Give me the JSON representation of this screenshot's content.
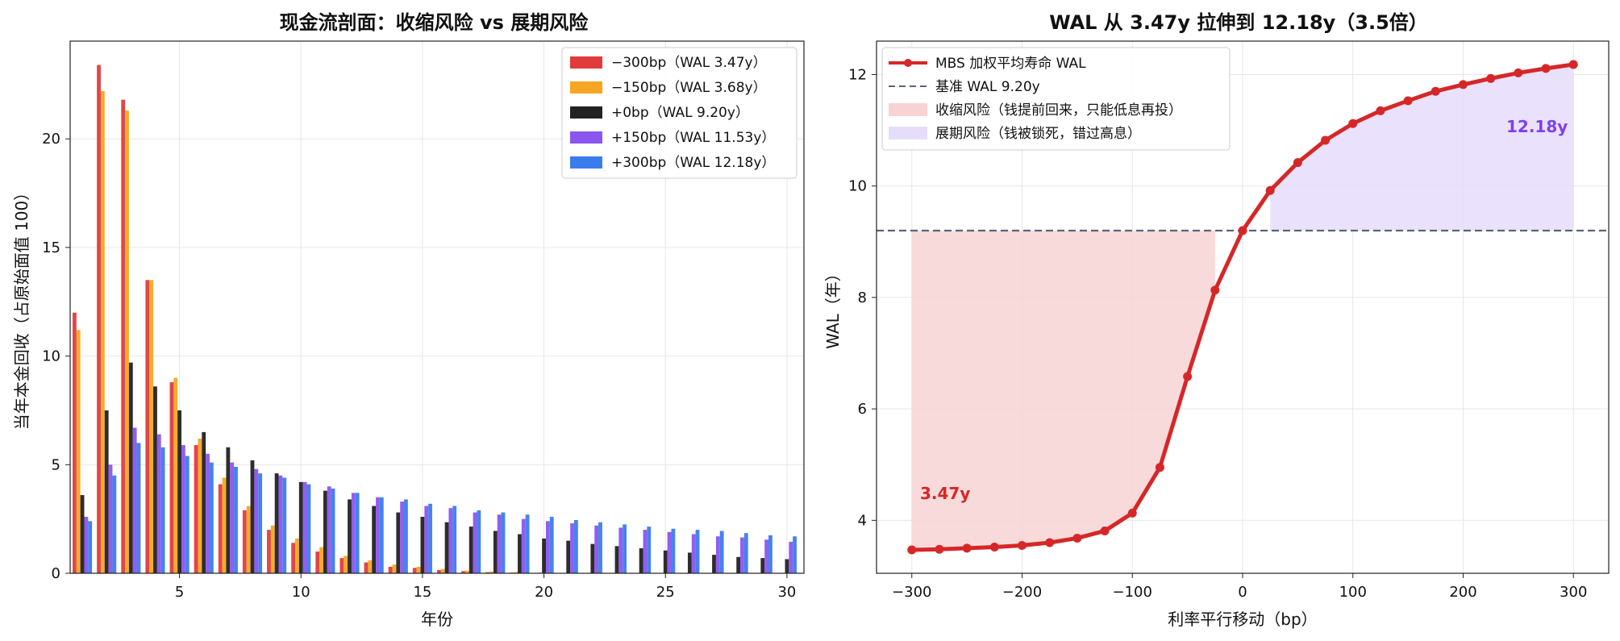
{
  "colors": {
    "m300": "#e03c3c",
    "m150": "#f5a623",
    "zero": "#222222",
    "p150": "#8b55f0",
    "p300": "#3b7ced",
    "wal_line": "#d62728",
    "baseline": "#5a6478",
    "contraction_fill": "#f8d3d4",
    "extension_fill": "#e6ddfb",
    "contraction_text": "#d62728",
    "extension_text": "#7e3ff2"
  },
  "chart_data": [
    {
      "type": "bar",
      "title": "现金流剖面：收缩风险 vs 展期风险",
      "xlabel": "年份",
      "ylabel": "当年本金回收（占原始面值 100）",
      "xlim": [
        0.5,
        30.7
      ],
      "ylim": [
        0,
        24.5
      ],
      "xticks": [
        5,
        10,
        15,
        20,
        25,
        30
      ],
      "yticks": [
        0,
        5,
        10,
        15,
        20
      ],
      "grid": true,
      "legend_position": "top-right",
      "categories": [
        1,
        2,
        3,
        4,
        5,
        6,
        7,
        8,
        9,
        10,
        11,
        12,
        13,
        14,
        15,
        16,
        17,
        18,
        19,
        20,
        21,
        22,
        23,
        24,
        25,
        26,
        27,
        28,
        29,
        30
      ],
      "series": [
        {
          "name": "−300bp（WAL 3.47y）",
          "color_key": "m300",
          "values": [
            12.0,
            23.4,
            21.8,
            13.5,
            8.8,
            5.9,
            4.1,
            2.9,
            2.0,
            1.4,
            1.0,
            0.7,
            0.5,
            0.3,
            0.25,
            0.15,
            0.1,
            0.05,
            0.03,
            0.02,
            0,
            0,
            0,
            0,
            0,
            0,
            0,
            0,
            0,
            0
          ]
        },
        {
          "name": "−150bp（WAL 3.68y）",
          "color_key": "m150",
          "values": [
            11.2,
            22.2,
            21.3,
            13.5,
            9.0,
            6.2,
            4.4,
            3.1,
            2.2,
            1.6,
            1.2,
            0.8,
            0.6,
            0.4,
            0.3,
            0.2,
            0.12,
            0.08,
            0.05,
            0.03,
            0.02,
            0,
            0,
            0,
            0,
            0,
            0,
            0,
            0,
            0
          ]
        },
        {
          "name": "+0bp（WAL 9.20y）",
          "color_key": "zero",
          "values": [
            3.6,
            7.5,
            9.7,
            8.6,
            7.5,
            6.5,
            5.8,
            5.2,
            4.6,
            4.2,
            3.8,
            3.4,
            3.1,
            2.8,
            2.6,
            2.35,
            2.15,
            1.95,
            1.8,
            1.6,
            1.5,
            1.35,
            1.25,
            1.15,
            1.05,
            0.95,
            0.85,
            0.75,
            0.7,
            0.65
          ]
        },
        {
          "name": "+150bp（WAL 11.53y）",
          "color_key": "p150",
          "values": [
            2.6,
            5.0,
            6.7,
            6.4,
            5.9,
            5.5,
            5.1,
            4.8,
            4.5,
            4.2,
            4.0,
            3.7,
            3.5,
            3.3,
            3.1,
            3.0,
            2.8,
            2.7,
            2.5,
            2.4,
            2.3,
            2.2,
            2.1,
            2.0,
            1.9,
            1.8,
            1.7,
            1.65,
            1.55,
            1.45
          ]
        },
        {
          "name": "+300bp（WAL 12.18y）",
          "color_key": "p300",
          "values": [
            2.4,
            4.5,
            6.0,
            5.8,
            5.4,
            5.1,
            4.9,
            4.6,
            4.4,
            4.1,
            3.9,
            3.7,
            3.5,
            3.4,
            3.2,
            3.1,
            2.9,
            2.8,
            2.7,
            2.6,
            2.45,
            2.35,
            2.25,
            2.15,
            2.05,
            2.0,
            1.95,
            1.85,
            1.75,
            1.7
          ]
        }
      ]
    },
    {
      "type": "line",
      "title": "WAL 从 3.47y 拉伸到 12.18y（3.5倍）",
      "xlabel": "利率平行移动（bp）",
      "ylabel": "WAL（年）",
      "xlim": [
        -332,
        332
      ],
      "ylim": [
        3.05,
        12.6
      ],
      "xticks": [
        -300,
        -200,
        -100,
        0,
        100,
        200,
        300
      ],
      "xtick_labels": [
        "−300",
        "−200",
        "−100",
        "0",
        "100",
        "200",
        "300"
      ],
      "yticks": [
        4,
        6,
        8,
        10,
        12
      ],
      "grid": true,
      "legend_position": "top-left",
      "baseline": 9.2,
      "x": [
        -300,
        -275,
        -250,
        -225,
        -200,
        -175,
        -150,
        -125,
        -100,
        -75,
        -50,
        -25,
        0,
        25,
        50,
        75,
        100,
        125,
        150,
        175,
        200,
        225,
        250,
        275,
        300
      ],
      "series": [
        {
          "name": "MBS 加权平均寿命 WAL",
          "color_key": "wal_line",
          "values": [
            3.47,
            3.48,
            3.5,
            3.52,
            3.55,
            3.6,
            3.68,
            3.81,
            4.13,
            4.95,
            6.58,
            8.13,
            9.2,
            9.92,
            10.42,
            10.82,
            11.12,
            11.35,
            11.53,
            11.7,
            11.82,
            11.93,
            12.03,
            12.11,
            12.18
          ]
        }
      ],
      "legend_entries": {
        "line": "MBS 加权平均寿命 WAL",
        "baseline": "基准 WAL 9.20y",
        "contraction": "收缩风险（钱提前回来，只能低息再投）",
        "extension": "展期风险（钱被锁死，错过高息）"
      },
      "annotations": {
        "low": "3.47y",
        "high": "12.18y"
      }
    }
  ]
}
